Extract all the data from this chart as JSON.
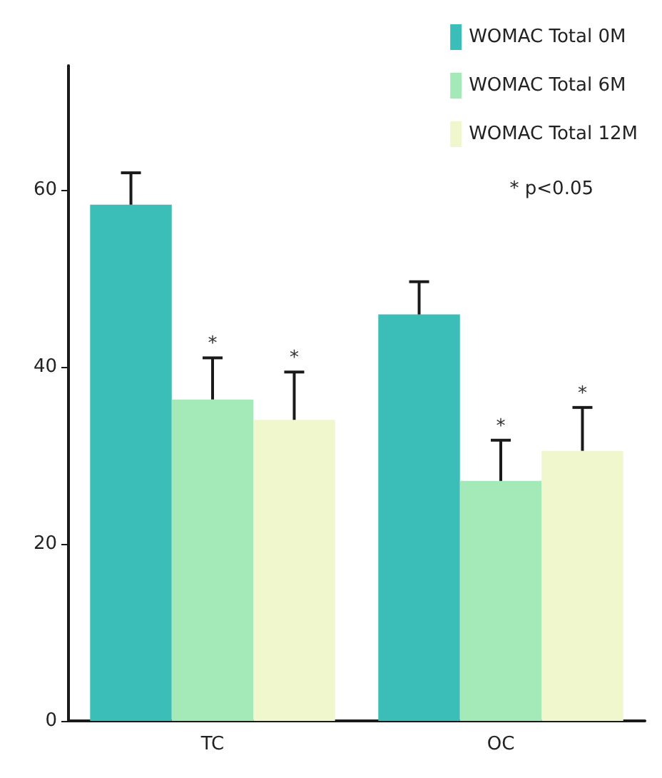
{
  "chart_data": {
    "type": "bar",
    "categories": [
      "TC",
      "OC"
    ],
    "series": [
      {
        "name": "WOMAC Total 0M",
        "color": "#3bbdb8",
        "values": [
          58.3,
          45.9
        ],
        "errors": [
          [
            58.3,
            61.9
          ],
          [
            45.9,
            49.6
          ]
        ]
      },
      {
        "name": "WOMAC Total 6M",
        "color": "#a4eab8",
        "values": [
          36.3,
          27.1
        ],
        "errors": [
          [
            36.3,
            41.0
          ],
          [
            27.1,
            31.7
          ]
        ],
        "value_labels": [
          "*",
          "*"
        ]
      },
      {
        "name": "WOMAC Total 12M",
        "color": "#f0f7cc",
        "values": [
          34.0,
          30.5
        ],
        "errors": [
          [
            34.0,
            39.4
          ],
          [
            30.5,
            35.4
          ]
        ],
        "value_labels": [
          "*",
          "*"
        ]
      }
    ],
    "ylim": [
      0,
      74
    ],
    "yticks": [
      0,
      20,
      40,
      60
    ],
    "grid": false,
    "legend": "top right",
    "annotations": [
      "* p<0.05"
    ]
  }
}
